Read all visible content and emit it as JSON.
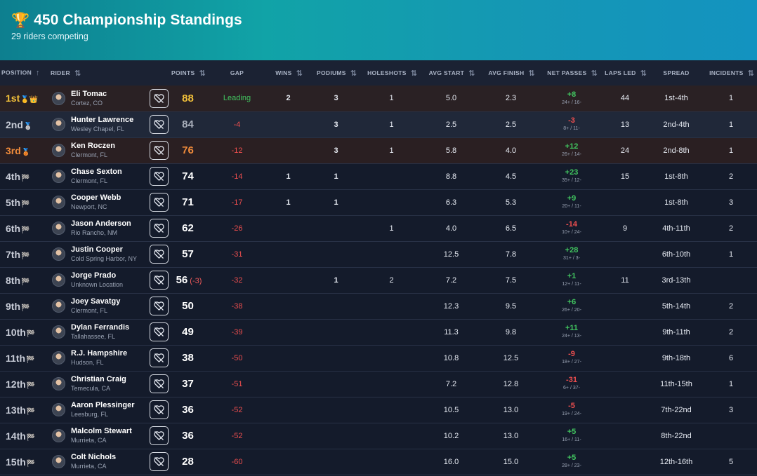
{
  "header": {
    "trophy_icon": "🏆",
    "title": "450 Championship Standings",
    "subtitle": "29 riders competing"
  },
  "table": {
    "columns": {
      "position": "POSITION",
      "rider": "RIDER",
      "points": "POINTS",
      "gap": "GAP",
      "wins": "WINS",
      "podiums": "PODIUMS",
      "holeshots": "HOLESHOTS",
      "avg_start": "AVG START",
      "avg_finish": "AVG FINISH",
      "net_passes": "NET PASSES",
      "laps_led": "LAPS LED",
      "spread": "SPREAD",
      "incidents": "INCIDENTS"
    },
    "sort_icons": {
      "active_up": "↑",
      "neutral": "⇅"
    },
    "rows": [
      {
        "pos": "1st",
        "badges": "🥇👑",
        "name": "Eli Tomac",
        "loc": "Cortez, CO",
        "points": "88",
        "penalty": "",
        "gap": "Leading",
        "wins": "2",
        "podiums": "3",
        "holeshots": "1",
        "avg_start": "5.0",
        "avg_finish": "2.3",
        "np": "+8",
        "np_sub": "24+ / 16-",
        "laps_led": "44",
        "spread": "1st-4th",
        "incidents": "1"
      },
      {
        "pos": "2nd",
        "badges": "🥈",
        "name": "Hunter Lawrence",
        "loc": "Wesley Chapel, FL",
        "points": "84",
        "penalty": "",
        "gap": "-4",
        "wins": "",
        "podiums": "3",
        "holeshots": "1",
        "avg_start": "2.5",
        "avg_finish": "2.5",
        "np": "-3",
        "np_sub": "8+ / 11-",
        "laps_led": "13",
        "spread": "2nd-4th",
        "incidents": "1"
      },
      {
        "pos": "3rd",
        "badges": "🥉",
        "name": "Ken Roczen",
        "loc": "Clermont, FL",
        "points": "76",
        "penalty": "",
        "gap": "-12",
        "wins": "",
        "podiums": "3",
        "holeshots": "1",
        "avg_start": "5.8",
        "avg_finish": "4.0",
        "np": "+12",
        "np_sub": "26+ / 14-",
        "laps_led": "24",
        "spread": "2nd-8th",
        "incidents": "1"
      },
      {
        "pos": "4th",
        "badges": "🏁",
        "name": "Chase Sexton",
        "loc": "Clermont, FL",
        "points": "74",
        "penalty": "",
        "gap": "-14",
        "wins": "1",
        "podiums": "1",
        "holeshots": "",
        "avg_start": "8.8",
        "avg_finish": "4.5",
        "np": "+23",
        "np_sub": "35+ / 12-",
        "laps_led": "15",
        "spread": "1st-8th",
        "incidents": "2"
      },
      {
        "pos": "5th",
        "badges": "🏁",
        "name": "Cooper Webb",
        "loc": "Newport, NC",
        "points": "71",
        "penalty": "",
        "gap": "-17",
        "wins": "1",
        "podiums": "1",
        "holeshots": "",
        "avg_start": "6.3",
        "avg_finish": "5.3",
        "np": "+9",
        "np_sub": "20+ / 11-",
        "laps_led": "",
        "spread": "1st-8th",
        "incidents": "3"
      },
      {
        "pos": "6th",
        "badges": "🏁",
        "name": "Jason Anderson",
        "loc": "Rio Rancho, NM",
        "points": "62",
        "penalty": "",
        "gap": "-26",
        "wins": "",
        "podiums": "",
        "holeshots": "1",
        "avg_start": "4.0",
        "avg_finish": "6.5",
        "np": "-14",
        "np_sub": "10+ / 24-",
        "laps_led": "9",
        "spread": "4th-11th",
        "incidents": "2"
      },
      {
        "pos": "7th",
        "badges": "🏁",
        "name": "Justin Cooper",
        "loc": "Cold Spring Harbor, NY",
        "points": "57",
        "penalty": "",
        "gap": "-31",
        "wins": "",
        "podiums": "",
        "holeshots": "",
        "avg_start": "12.5",
        "avg_finish": "7.8",
        "np": "+28",
        "np_sub": "31+ / 3-",
        "laps_led": "",
        "spread": "6th-10th",
        "incidents": "1"
      },
      {
        "pos": "8th",
        "badges": "🏁",
        "name": "Jorge Prado",
        "loc": "Unknown Location",
        "points": "56",
        "penalty": "(-3)",
        "gap": "-32",
        "wins": "",
        "podiums": "1",
        "holeshots": "2",
        "avg_start": "7.2",
        "avg_finish": "7.5",
        "np": "+1",
        "np_sub": "12+ / 11-",
        "laps_led": "11",
        "spread": "3rd-13th",
        "incidents": ""
      },
      {
        "pos": "9th",
        "badges": "🏁",
        "name": "Joey Savatgy",
        "loc": "Clermont, FL",
        "points": "50",
        "penalty": "",
        "gap": "-38",
        "wins": "",
        "podiums": "",
        "holeshots": "",
        "avg_start": "12.3",
        "avg_finish": "9.5",
        "np": "+6",
        "np_sub": "26+ / 20-",
        "laps_led": "",
        "spread": "5th-14th",
        "incidents": "2"
      },
      {
        "pos": "10th",
        "badges": "🏁",
        "name": "Dylan Ferrandis",
        "loc": "Tallahassee, FL",
        "points": "49",
        "penalty": "",
        "gap": "-39",
        "wins": "",
        "podiums": "",
        "holeshots": "",
        "avg_start": "11.3",
        "avg_finish": "9.8",
        "np": "+11",
        "np_sub": "24+ / 13-",
        "laps_led": "",
        "spread": "9th-11th",
        "incidents": "2"
      },
      {
        "pos": "11th",
        "badges": "🏁",
        "name": "R.J. Hampshire",
        "loc": "Hudson, FL",
        "points": "38",
        "penalty": "",
        "gap": "-50",
        "wins": "",
        "podiums": "",
        "holeshots": "",
        "avg_start": "10.8",
        "avg_finish": "12.5",
        "np": "-9",
        "np_sub": "18+ / 27-",
        "laps_led": "",
        "spread": "9th-18th",
        "incidents": "6"
      },
      {
        "pos": "12th",
        "badges": "🏁",
        "name": "Christian Craig",
        "loc": "Temecula, CA",
        "points": "37",
        "penalty": "",
        "gap": "-51",
        "wins": "",
        "podiums": "",
        "holeshots": "",
        "avg_start": "7.2",
        "avg_finish": "12.8",
        "np": "-31",
        "np_sub": "6+ / 37-",
        "laps_led": "",
        "spread": "11th-15th",
        "incidents": "1"
      },
      {
        "pos": "13th",
        "badges": "🏁",
        "name": "Aaron Plessinger",
        "loc": "Leesburg, FL",
        "points": "36",
        "penalty": "",
        "gap": "-52",
        "wins": "",
        "podiums": "",
        "holeshots": "",
        "avg_start": "10.5",
        "avg_finish": "13.0",
        "np": "-5",
        "np_sub": "19+ / 24-",
        "laps_led": "",
        "spread": "7th-22nd",
        "incidents": "3"
      },
      {
        "pos": "14th",
        "badges": "🏁",
        "name": "Malcolm Stewart",
        "loc": "Murrieta, CA",
        "points": "36",
        "penalty": "",
        "gap": "-52",
        "wins": "",
        "podiums": "",
        "holeshots": "",
        "avg_start": "10.2",
        "avg_finish": "13.0",
        "np": "+5",
        "np_sub": "16+ / 11-",
        "laps_led": "",
        "spread": "8th-22nd",
        "incidents": ""
      },
      {
        "pos": "15th",
        "badges": "🏁",
        "name": "Colt Nichols",
        "loc": "Murrieta, CA",
        "points": "28",
        "penalty": "",
        "gap": "-60",
        "wins": "",
        "podiums": "",
        "holeshots": "",
        "avg_start": "16.0",
        "avg_finish": "15.0",
        "np": "+5",
        "np_sub": "28+ / 23-",
        "laps_led": "",
        "spread": "12th-16th",
        "incidents": "5"
      }
    ]
  }
}
